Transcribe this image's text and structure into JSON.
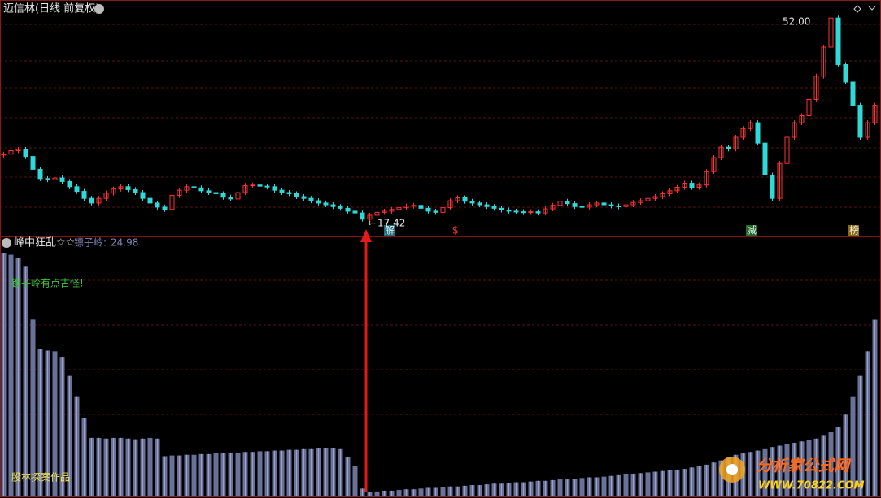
{
  "chart_data": [
    {
      "type": "candlestick",
      "title": "迈信林(日线 前复权)",
      "values": [
        28.6,
        29.2,
        29.4,
        28.2,
        26.0,
        24.4,
        24.2,
        24.5,
        23.9,
        23.0,
        22.2,
        21.0,
        20.2,
        21.0,
        21.9,
        22.6,
        23.0,
        22.5,
        22.0,
        21.0,
        20.2,
        19.5,
        19.1,
        21.5,
        22.4,
        23.0,
        22.8,
        22.3,
        22.0,
        21.8,
        21.2,
        20.9,
        22.0,
        23.2,
        23.3,
        23.1,
        23.0,
        22.4,
        22.0,
        21.8,
        21.3,
        21.0,
        20.6,
        20.2,
        19.9,
        19.6,
        19.3,
        18.8,
        18.5,
        17.42,
        18.1,
        18.6,
        18.8,
        19.1,
        19.4,
        19.7,
        19.8,
        19.3,
        18.8,
        18.6,
        19.4,
        20.6,
        21.1,
        20.5,
        20.2,
        19.9,
        19.6,
        19.3,
        19.0,
        18.8,
        18.7,
        18.6,
        18.7,
        18.5,
        19.2,
        19.8,
        20.5,
        20.1,
        19.6,
        19.5,
        19.9,
        20.2,
        19.9,
        19.7,
        19.6,
        19.9,
        20.3,
        20.6,
        21.0,
        21.3,
        21.8,
        22.3,
        22.9,
        23.6,
        22.9,
        23.3,
        25.6,
        28.0,
        29.8,
        29.5,
        31.5,
        33.0,
        34.0,
        30.5,
        25.0,
        21.0,
        27.0,
        31.5,
        34.0,
        35.2,
        38.0,
        42.0,
        47.0,
        52.0,
        44.0,
        41.0,
        37.0,
        31.5,
        34.0,
        37.0
      ],
      "ylim": [
        14.6,
        55.1
      ],
      "up_color": "#ff3232",
      "down_color": "#30d8d8",
      "annotations": [
        "52.00",
        "17.42"
      ],
      "signals": [
        "解",
        "$",
        "减",
        "榜"
      ]
    },
    {
      "type": "bar",
      "title": "峰中狂乱☆☆",
      "series_name": "镖子岭:",
      "color": "#6a7299",
      "values": [
        34.5,
        34.2,
        33.8,
        32.5,
        25.0,
        20.8,
        20.6,
        20.5,
        19.6,
        17.0,
        14.0,
        11.0,
        8.2,
        8.2,
        8.1,
        8.2,
        8.2,
        8.1,
        8.0,
        8.1,
        8.2,
        8.1,
        5.6,
        5.7,
        5.7,
        5.8,
        5.8,
        5.9,
        5.9,
        6.0,
        6.0,
        6.1,
        6.1,
        6.2,
        6.2,
        6.3,
        6.3,
        6.4,
        6.4,
        6.5,
        6.5,
        6.6,
        6.6,
        6.7,
        6.7,
        6.8,
        6.6,
        5.5,
        4.2,
        1.0,
        0.5,
        0.6,
        0.7,
        0.7,
        0.8,
        0.9,
        0.9,
        1.0,
        1.1,
        1.1,
        1.2,
        1.3,
        1.3,
        1.4,
        1.5,
        1.5,
        1.6,
        1.7,
        1.7,
        1.8,
        1.9,
        1.9,
        2.0,
        2.1,
        2.1,
        2.2,
        2.3,
        2.3,
        2.4,
        2.5,
        2.6,
        2.6,
        2.7,
        2.8,
        2.9,
        3.0,
        3.1,
        3.2,
        3.3,
        3.4,
        3.5,
        3.6,
        3.7,
        3.8,
        4.0,
        4.2,
        4.4,
        4.7,
        5.0,
        5.4,
        5.8,
        6.0,
        6.2,
        6.4,
        6.6,
        6.9,
        7.1,
        7.3,
        7.5,
        7.7,
        7.9,
        8.1,
        8.5,
        9.0,
        9.8,
        11.5,
        14.0,
        17.0,
        20.5,
        24.98
      ],
      "ylim": [
        0,
        36
      ],
      "annotations": [
        "镖子岭有点古怪!",
        "股林探案作品"
      ]
    }
  ],
  "watermark": {
    "name": "分析家公式网",
    "url": "WWW.70822.COM"
  }
}
